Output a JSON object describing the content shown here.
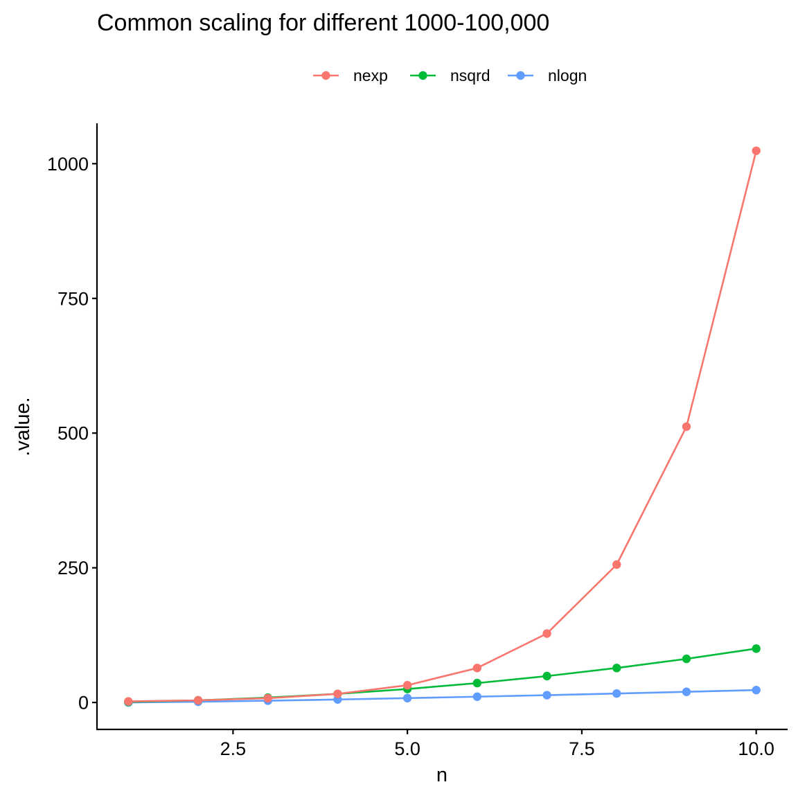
{
  "chart_data": {
    "type": "line",
    "title": "Common scaling for different 1000-100,000",
    "xlabel": "n",
    "ylabel": ".value.",
    "x": [
      1,
      2,
      3,
      4,
      5,
      6,
      7,
      8,
      9,
      10
    ],
    "xlim": [
      0.55,
      10.45
    ],
    "ylim": [
      -50,
      1075
    ],
    "xticks": [
      2.5,
      5.0,
      7.5,
      10.0
    ],
    "xtick_labels": [
      "2.5",
      "5.0",
      "7.5",
      "10.0"
    ],
    "yticks": [
      0,
      250,
      500,
      750,
      1000
    ],
    "ytick_labels": [
      "0",
      "250",
      "500",
      "750",
      "1000"
    ],
    "grid": false,
    "legend_position": "top",
    "markers": true,
    "series": [
      {
        "name": "nexp",
        "color": "#F8766D",
        "values": [
          2,
          4,
          8,
          16,
          32,
          64,
          128,
          256,
          512,
          1024
        ]
      },
      {
        "name": "nsqrd",
        "color": "#00BA38",
        "values": [
          1,
          4,
          9,
          16,
          25,
          36,
          49,
          64,
          81,
          100
        ]
      },
      {
        "name": "nlogn",
        "color": "#619CFF",
        "values": [
          0,
          1.39,
          3.3,
          5.55,
          8.05,
          10.75,
          13.62,
          16.64,
          19.78,
          23.03
        ]
      }
    ]
  }
}
